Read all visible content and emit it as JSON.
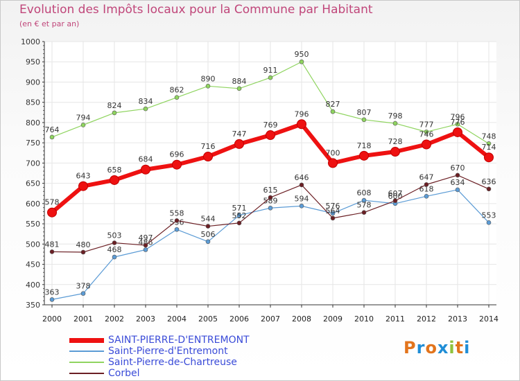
{
  "header": {
    "title": "Evolution des Impôts locaux pour la Commune par Habitant",
    "subtitle": "(en € et par an)"
  },
  "logo": {
    "text": "Proxiti",
    "colors": [
      "#e2741c",
      "#1f8dd6",
      "#e2741c",
      "#1f8dd6",
      "#8fc23b",
      "#e2741c",
      "#1f8dd6"
    ]
  },
  "chart_data": {
    "type": "line",
    "title": "Evolution des Impôts locaux pour la Commune par Habitant",
    "subtitle": "(en € et par an)",
    "xlabel": "",
    "ylabel": "",
    "ylim": [
      350,
      1000
    ],
    "ytick_step": 50,
    "grid": true,
    "legend_position": "bottom-left",
    "categories": [
      "2000",
      "2001",
      "2002",
      "2003",
      "2004",
      "2005",
      "2006",
      "2007",
      "2008",
      "2009",
      "2010",
      "2011",
      "2012",
      "2013",
      "2014"
    ],
    "series": [
      {
        "name": "SAINT-PIERRE-D'ENTREMONT",
        "color": "#ee1111",
        "highlight": true,
        "values": [
          578,
          643,
          658,
          684,
          696,
          716,
          747,
          769,
          796,
          700,
          718,
          728,
          746,
          776,
          714
        ]
      },
      {
        "name": "Saint-Pierre-d'Entremont",
        "color": "#5b9bd5",
        "highlight": false,
        "values": [
          363,
          378,
          468,
          486,
          536,
          506,
          571,
          589,
          594,
          576,
          608,
          600,
          618,
          634,
          553
        ]
      },
      {
        "name": "Saint-Pierre-de-Chartreuse",
        "color": "#8fd45f",
        "highlight": false,
        "values": [
          764,
          794,
          824,
          834,
          862,
          890,
          884,
          911,
          950,
          827,
          807,
          798,
          777,
          796,
          748
        ]
      },
      {
        "name": "Corbel",
        "color": "#6b1f24",
        "highlight": false,
        "values": [
          481,
          480,
          503,
          497,
          558,
          544,
          552,
          615,
          646,
          564,
          578,
          607,
          647,
          670,
          636
        ]
      }
    ]
  }
}
